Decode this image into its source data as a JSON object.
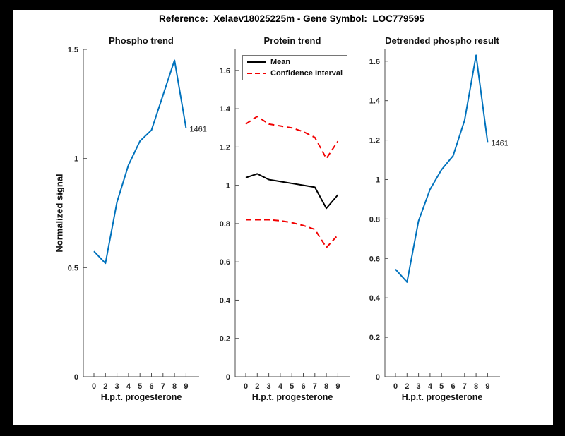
{
  "figure": {
    "title": "Reference:  Xelaev18025225m - Gene Symbol:  LOC779595",
    "frame_color": "#000000",
    "panel_color": "#ffffff"
  },
  "palette": {
    "blue": "#0072BD",
    "red": "#f20000",
    "black": "#000000",
    "axis": "#4d4d4d"
  },
  "chart_data": [
    {
      "type": "line",
      "title": "Phospho trend",
      "xlabel": "H.p.t. progesterone",
      "ylabel": "Normalized signal",
      "x_tick_labels": [
        "0",
        "2",
        "3",
        "4",
        "5",
        "6",
        "7",
        "8",
        "9"
      ],
      "ylim": [
        0,
        1.5
      ],
      "yticks": [
        0,
        0.5,
        1,
        1.5
      ],
      "ytick_labels": [
        "0",
        "0.5",
        "1",
        "1.5"
      ],
      "grid": false,
      "legend": null,
      "series": [
        {
          "name": "phospho-signal",
          "color": "#0072BD",
          "dashed": false,
          "values": [
            0.575,
            0.52,
            0.8,
            0.97,
            1.08,
            1.13,
            1.29,
            1.45,
            1.14
          ]
        }
      ],
      "endpoint_label": "1461"
    },
    {
      "type": "line",
      "title": "Protein trend",
      "xlabel": "H.p.t. progesterone",
      "ylabel": "",
      "x_tick_labels": [
        "0",
        "2",
        "3",
        "4",
        "5",
        "6",
        "7",
        "8",
        "9"
      ],
      "ylim": [
        0,
        1.71
      ],
      "yticks": [
        0,
        0.2,
        0.4,
        0.6,
        0.8,
        1,
        1.2,
        1.4,
        1.6
      ],
      "ytick_labels": [
        "0",
        "0.2",
        "0.4",
        "0.6",
        "0.8",
        "1",
        "1.2",
        "1.4",
        "1.6"
      ],
      "grid": false,
      "legend": {
        "position": "top-left",
        "entries": [
          {
            "label": "Mean",
            "color": "#000000",
            "dashed": false
          },
          {
            "label": "Confidence Interval",
            "color": "#f20000",
            "dashed": true
          }
        ]
      },
      "series": [
        {
          "name": "mean",
          "color": "#000000",
          "dashed": false,
          "values": [
            1.04,
            1.06,
            1.03,
            1.02,
            1.01,
            1.0,
            0.99,
            0.88,
            0.95
          ]
        },
        {
          "name": "ci-upper",
          "color": "#f20000",
          "dashed": true,
          "values": [
            1.32,
            1.36,
            1.32,
            1.31,
            1.3,
            1.28,
            1.25,
            1.14,
            1.23
          ]
        },
        {
          "name": "ci-lower",
          "color": "#f20000",
          "dashed": true,
          "values": [
            0.82,
            0.82,
            0.82,
            0.815,
            0.805,
            0.79,
            0.77,
            0.675,
            0.74
          ]
        }
      ],
      "endpoint_label": null
    },
    {
      "type": "line",
      "title": "Detrended phospho result",
      "xlabel": "H.p.t. progesterone",
      "ylabel": "",
      "x_tick_labels": [
        "0",
        "2",
        "3",
        "4",
        "5",
        "6",
        "7",
        "8",
        "9"
      ],
      "ylim": [
        0,
        1.66
      ],
      "yticks": [
        0,
        0.2,
        0.4,
        0.6,
        0.8,
        1,
        1.2,
        1.4,
        1.6
      ],
      "ytick_labels": [
        "0",
        "0.2",
        "0.4",
        "0.6",
        "0.8",
        "1",
        "1.2",
        "1.4",
        "1.6"
      ],
      "grid": false,
      "legend": null,
      "series": [
        {
          "name": "detrended-phospho",
          "color": "#0072BD",
          "dashed": false,
          "values": [
            0.545,
            0.48,
            0.79,
            0.95,
            1.05,
            1.12,
            1.3,
            1.63,
            1.19
          ]
        }
      ],
      "endpoint_label": "1461"
    }
  ]
}
